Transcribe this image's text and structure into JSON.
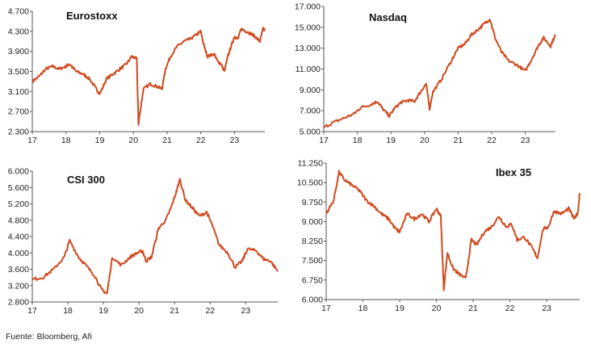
{
  "source": "Fuente: Bloomberg, Afi",
  "line_color": "#d04a1e",
  "chart_data": [
    {
      "type": "line",
      "title": "Eurostoxx",
      "xlabel": "",
      "ylabel": "",
      "grid": false,
      "xlim": [
        17,
        23.9
      ],
      "ylim": [
        2300,
        4700
      ],
      "x_ticks": [
        "17",
        "18",
        "19",
        "20",
        "21",
        "22",
        "23"
      ],
      "y_ticks": [
        "2.300",
        "2.700",
        "3.100",
        "3.500",
        "3.900",
        "4.300",
        "4.700"
      ],
      "series": [
        {
          "x": [
            17.0,
            17.2,
            17.4,
            17.6,
            17.8,
            18.0,
            18.1,
            18.3,
            18.5,
            18.7,
            18.9,
            19.0,
            19.2,
            19.4,
            19.6,
            19.8,
            19.95,
            20.1,
            20.15,
            20.2,
            20.3,
            20.5,
            20.7,
            20.85,
            20.95,
            21.1,
            21.3,
            21.5,
            21.7,
            21.9,
            22.0,
            22.1,
            22.2,
            22.4,
            22.5,
            22.6,
            22.7,
            22.8,
            22.9,
            23.0,
            23.1,
            23.2,
            23.35,
            23.5,
            23.6,
            23.75,
            23.85,
            23.9
          ],
          "y": [
            3300,
            3400,
            3550,
            3600,
            3550,
            3600,
            3650,
            3500,
            3450,
            3350,
            3150,
            3050,
            3350,
            3450,
            3550,
            3650,
            3800,
            3750,
            2450,
            2700,
            3150,
            3250,
            3200,
            3150,
            3550,
            3800,
            4000,
            4100,
            4150,
            4250,
            4300,
            4000,
            3800,
            3850,
            3700,
            3650,
            3500,
            3800,
            4000,
            4200,
            4150,
            4350,
            4300,
            4250,
            4200,
            4100,
            4350,
            4320
          ]
        }
      ]
    },
    {
      "type": "line",
      "title": "Nasdaq",
      "xlabel": "",
      "ylabel": "",
      "grid": false,
      "xlim": [
        17,
        23.9
      ],
      "ylim": [
        5000,
        17000
      ],
      "x_ticks": [
        "17",
        "18",
        "19",
        "20",
        "21",
        "22",
        "23"
      ],
      "y_ticks": [
        "5.000",
        "7.000",
        "9.000",
        "11.000",
        "13.000",
        "15.000",
        "17.000"
      ],
      "series": [
        {
          "x": [
            17.0,
            17.3,
            17.6,
            17.9,
            18.1,
            18.4,
            18.6,
            18.75,
            18.95,
            19.1,
            19.3,
            19.5,
            19.7,
            19.9,
            20.05,
            20.15,
            20.25,
            20.5,
            20.8,
            21.0,
            21.2,
            21.4,
            21.6,
            21.8,
            21.95,
            22.1,
            22.3,
            22.5,
            22.75,
            23.0,
            23.2,
            23.4,
            23.55,
            23.75,
            23.9
          ],
          "y": [
            5400,
            5900,
            6300,
            6700,
            7300,
            7600,
            7900,
            7200,
            6500,
            7200,
            7800,
            8000,
            7900,
            8900,
            9600,
            7200,
            8800,
            10000,
            11800,
            13000,
            13400,
            14300,
            14800,
            15400,
            15800,
            14000,
            12600,
            11800,
            11400,
            10800,
            12000,
            13300,
            14000,
            13200,
            14300
          ]
        }
      ]
    },
    {
      "type": "line",
      "title": "CSI 300",
      "xlabel": "",
      "ylabel": "",
      "grid": false,
      "xlim": [
        17,
        23.9
      ],
      "ylim": [
        2800,
        6000
      ],
      "x_ticks": [
        "17",
        "18",
        "19",
        "20",
        "21",
        "22",
        "23"
      ],
      "y_ticks": [
        "2.800",
        "3.200",
        "3.600",
        "4.000",
        "4.400",
        "4.800",
        "5.200",
        "5.600",
        "6.000"
      ],
      "series": [
        {
          "x": [
            17.0,
            17.3,
            17.6,
            17.9,
            18.05,
            18.3,
            18.5,
            18.75,
            18.95,
            19.1,
            19.25,
            19.5,
            19.75,
            19.95,
            20.1,
            20.2,
            20.35,
            20.55,
            20.75,
            20.9,
            21.05,
            21.15,
            21.3,
            21.5,
            21.7,
            21.9,
            22.05,
            22.25,
            22.5,
            22.7,
            22.9,
            23.05,
            23.3,
            23.5,
            23.7,
            23.9
          ],
          "y": [
            3350,
            3400,
            3600,
            3900,
            4300,
            3900,
            3700,
            3450,
            3100,
            3000,
            3900,
            3700,
            3900,
            4000,
            4050,
            3800,
            3900,
            4600,
            4800,
            5100,
            5500,
            5800,
            5300,
            5100,
            4900,
            5000,
            4700,
            4200,
            4000,
            3650,
            3800,
            4100,
            4050,
            3850,
            3800,
            3550
          ]
        }
      ]
    },
    {
      "type": "line",
      "title": "Ibex 35",
      "xlabel": "",
      "ylabel": "",
      "grid": false,
      "xlim": [
        17,
        23.9
      ],
      "ylim": [
        6000,
        11250
      ],
      "x_ticks": [
        "17",
        "18",
        "19",
        "20",
        "21",
        "22",
        "23"
      ],
      "y_ticks": [
        "6.000",
        "6.750",
        "7.500",
        "8.250",
        "9.000",
        "9.750",
        "10.500",
        "11.250"
      ],
      "series": [
        {
          "x": [
            17.0,
            17.2,
            17.35,
            17.5,
            17.7,
            17.9,
            18.1,
            18.3,
            18.5,
            18.7,
            18.9,
            19.0,
            19.2,
            19.4,
            19.6,
            19.8,
            20.0,
            20.12,
            20.2,
            20.3,
            20.45,
            20.6,
            20.8,
            20.95,
            21.1,
            21.3,
            21.5,
            21.7,
            21.9,
            22.05,
            22.2,
            22.4,
            22.6,
            22.75,
            22.9,
            23.05,
            23.2,
            23.4,
            23.6,
            23.75,
            23.85,
            23.9
          ],
          "y": [
            9300,
            9800,
            10900,
            10600,
            10400,
            10200,
            9800,
            9600,
            9300,
            9100,
            8700,
            8600,
            9300,
            9100,
            9300,
            9000,
            9500,
            9200,
            6400,
            7800,
            7200,
            7000,
            6800,
            8300,
            8100,
            8600,
            8800,
            9200,
            8800,
            8900,
            8300,
            8400,
            8000,
            7600,
            8700,
            8800,
            9400,
            9300,
            9500,
            9100,
            9350,
            10100
          ]
        }
      ]
    }
  ]
}
